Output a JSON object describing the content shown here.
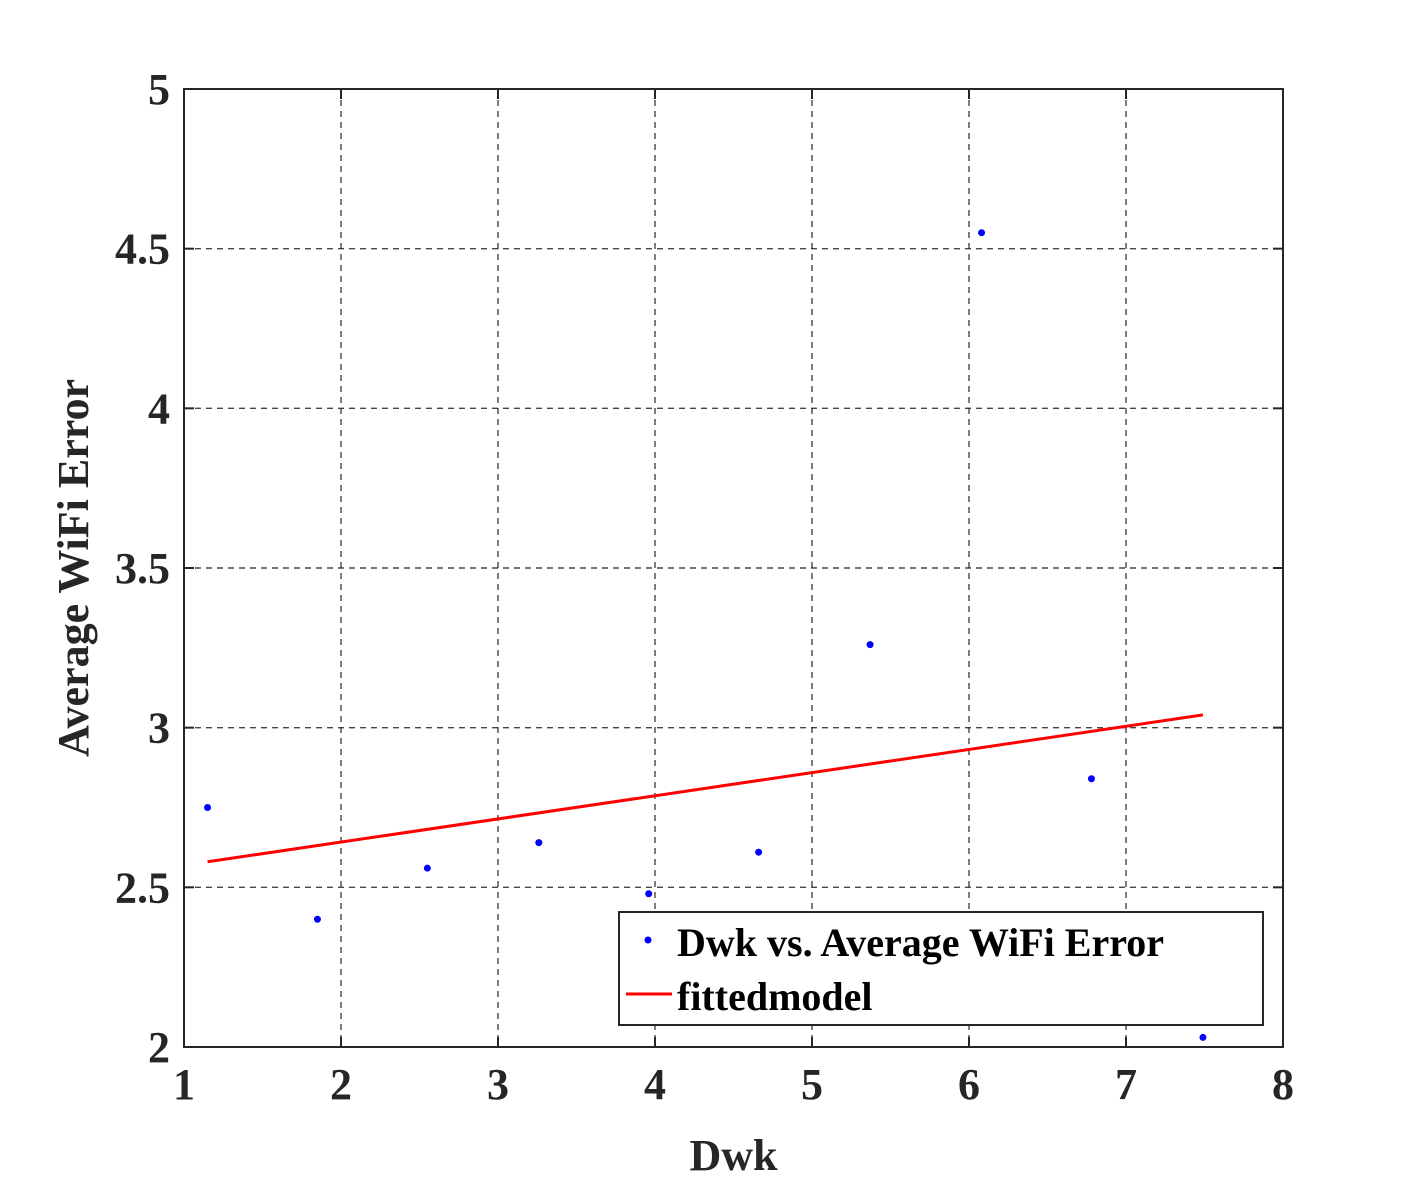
{
  "chart_data": {
    "type": "scatter",
    "title": "",
    "xlabel": "Dwk",
    "ylabel": "Average WiFi Error",
    "xlim": [
      1,
      8
    ],
    "ylim": [
      2,
      5
    ],
    "xticks": [
      "1",
      "2",
      "3",
      "4",
      "5",
      "6",
      "7",
      "8"
    ],
    "yticks": [
      "2",
      "2.5",
      "3",
      "3.5",
      "4",
      "4.5",
      "5"
    ],
    "grid": true,
    "legend_position": "bottom-right",
    "series": [
      {
        "name": "Dwk vs. Average WiFi Error",
        "kind": "scatter",
        "color": "#0000ff",
        "points": [
          {
            "x": 1.15,
            "y": 2.75
          },
          {
            "x": 1.85,
            "y": 2.4
          },
          {
            "x": 2.55,
            "y": 2.56
          },
          {
            "x": 3.26,
            "y": 2.64
          },
          {
            "x": 3.96,
            "y": 2.48
          },
          {
            "x": 4.66,
            "y": 2.61
          },
          {
            "x": 5.37,
            "y": 3.26
          },
          {
            "x": 6.08,
            "y": 4.55
          },
          {
            "x": 6.78,
            "y": 2.84
          },
          {
            "x": 7.49,
            "y": 2.03
          }
        ]
      },
      {
        "name": "fittedmodel",
        "kind": "line",
        "color": "#ff0000",
        "points": [
          {
            "x": 1.15,
            "y": 2.58
          },
          {
            "x": 7.49,
            "y": 3.04
          }
        ]
      }
    ]
  }
}
